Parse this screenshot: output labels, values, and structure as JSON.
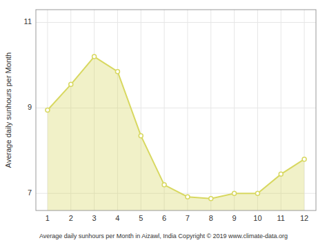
{
  "chart_data": {
    "type": "area",
    "x": [
      1,
      2,
      3,
      4,
      5,
      6,
      7,
      8,
      9,
      10,
      11,
      12
    ],
    "values": [
      8.95,
      9.55,
      10.2,
      9.85,
      8.35,
      7.2,
      6.92,
      6.88,
      7.0,
      7.0,
      7.45,
      7.8
    ],
    "color": "#D8D860",
    "marker": "circle",
    "xlabel": "Average daily sunhours per Month in Aizawl, India Copyright © 2019 www.climate-data.org",
    "ylabel": "Average daily sunhours per Month",
    "xlim": [
      0.5,
      12.5
    ],
    "ylim": [
      6.6,
      11.3
    ],
    "xticks": [
      1,
      2,
      3,
      4,
      5,
      6,
      7,
      8,
      9,
      10,
      11,
      12
    ],
    "yticks": [
      7,
      9,
      11
    ],
    "grid": true
  }
}
